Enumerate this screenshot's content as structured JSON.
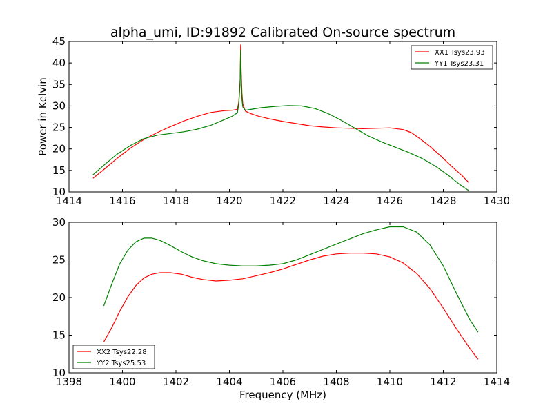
{
  "figure": {
    "title": "alpha_umi, ID:91892 Calibrated On-source spectrum",
    "ylabel": "Power in Kelvin",
    "xlabel": "Frequency (MHz)"
  },
  "chart_data": [
    {
      "type": "line",
      "xlabel": "",
      "ylabel": "Power in Kelvin",
      "xlim": [
        1414,
        1430
      ],
      "ylim": [
        10,
        45
      ],
      "xticks": [
        1414,
        1416,
        1418,
        1420,
        1422,
        1424,
        1426,
        1428,
        1430
      ],
      "yticks": [
        10,
        15,
        20,
        25,
        30,
        35,
        40,
        45
      ],
      "legend_position": "top-right",
      "series": [
        {
          "name": "XX1 Tsys23.93",
          "color": "#ff0000",
          "x": [
            1414.9,
            1415.3,
            1415.8,
            1416.3,
            1416.8,
            1417.3,
            1417.8,
            1418.3,
            1418.8,
            1419.3,
            1419.8,
            1420.1,
            1420.3,
            1420.35,
            1420.4,
            1420.42,
            1420.44,
            1420.47,
            1420.5,
            1420.6,
            1420.8,
            1421.1,
            1421.5,
            1422.0,
            1422.5,
            1423.0,
            1423.5,
            1424.0,
            1424.5,
            1425.0,
            1425.5,
            1426.0,
            1426.5,
            1426.8,
            1427.1,
            1427.5,
            1427.9,
            1428.3,
            1428.7,
            1428.95
          ],
          "y": [
            13.2,
            15.2,
            17.8,
            20.2,
            22.2,
            23.8,
            25.2,
            26.5,
            27.6,
            28.5,
            28.9,
            29.0,
            29.2,
            31.0,
            36.0,
            44.2,
            38.0,
            33.0,
            30.5,
            28.8,
            28.2,
            27.6,
            27.0,
            26.4,
            25.9,
            25.4,
            25.1,
            24.9,
            24.8,
            24.7,
            24.8,
            24.9,
            24.5,
            23.8,
            22.5,
            20.6,
            18.4,
            16.0,
            13.8,
            12.2
          ]
        },
        {
          "name": "YY1 Tsys23.31",
          "color": "#008000",
          "x": [
            1414.9,
            1415.3,
            1415.8,
            1416.3,
            1416.8,
            1417.3,
            1417.8,
            1418.3,
            1418.8,
            1419.3,
            1419.8,
            1420.1,
            1420.3,
            1420.35,
            1420.4,
            1420.42,
            1420.44,
            1420.47,
            1420.5,
            1420.6,
            1420.8,
            1421.2,
            1421.7,
            1422.2,
            1422.7,
            1423.2,
            1423.7,
            1424.2,
            1424.7,
            1425.2,
            1425.7,
            1426.2,
            1426.7,
            1427.2,
            1427.7,
            1428.2,
            1428.6,
            1428.95
          ],
          "y": [
            14.0,
            16.2,
            18.8,
            20.8,
            22.4,
            23.2,
            23.6,
            24.0,
            24.6,
            25.5,
            26.8,
            27.6,
            28.4,
            30.5,
            35.0,
            43.0,
            36.5,
            31.5,
            29.8,
            29.0,
            29.2,
            29.6,
            29.9,
            30.1,
            30.0,
            29.4,
            28.2,
            26.6,
            24.8,
            23.0,
            21.6,
            20.4,
            19.2,
            17.8,
            16.0,
            13.8,
            11.8,
            10.3
          ]
        }
      ]
    },
    {
      "type": "line",
      "xlabel": "Frequency (MHz)",
      "ylabel": "",
      "xlim": [
        1398,
        1414
      ],
      "ylim": [
        10,
        30
      ],
      "xticks": [
        1398,
        1400,
        1402,
        1404,
        1406,
        1408,
        1410,
        1412,
        1414
      ],
      "yticks": [
        10,
        15,
        20,
        25,
        30
      ],
      "legend_position": "bottom-left",
      "series": [
        {
          "name": "XX2 Tsys22.28",
          "color": "#ff0000",
          "x": [
            1399.3,
            1399.6,
            1399.9,
            1400.2,
            1400.5,
            1400.8,
            1401.1,
            1401.4,
            1401.8,
            1402.2,
            1402.6,
            1403.0,
            1403.5,
            1404.0,
            1404.5,
            1405.0,
            1405.5,
            1406.0,
            1406.5,
            1407.0,
            1407.5,
            1408.0,
            1408.5,
            1409.0,
            1409.5,
            1410.0,
            1410.5,
            1411.0,
            1411.5,
            1412.0,
            1412.5,
            1413.0,
            1413.3
          ],
          "y": [
            14.1,
            16.0,
            18.2,
            20.1,
            21.6,
            22.6,
            23.1,
            23.3,
            23.3,
            23.1,
            22.7,
            22.4,
            22.2,
            22.3,
            22.5,
            22.9,
            23.3,
            23.8,
            24.4,
            25.0,
            25.5,
            25.8,
            25.9,
            25.9,
            25.8,
            25.4,
            24.6,
            23.2,
            21.2,
            18.6,
            15.8,
            13.2,
            11.8
          ]
        },
        {
          "name": "YY2 Tsys25.53",
          "color": "#008000",
          "x": [
            1399.3,
            1399.6,
            1399.9,
            1400.2,
            1400.5,
            1400.8,
            1401.1,
            1401.4,
            1401.8,
            1402.2,
            1402.6,
            1403.0,
            1403.5,
            1404.0,
            1404.5,
            1405.0,
            1405.5,
            1406.0,
            1406.5,
            1407.0,
            1407.5,
            1408.0,
            1408.5,
            1409.0,
            1409.5,
            1410.0,
            1410.5,
            1411.0,
            1411.5,
            1412.0,
            1412.5,
            1413.0,
            1413.3
          ],
          "y": [
            18.9,
            21.8,
            24.5,
            26.3,
            27.4,
            27.9,
            27.9,
            27.6,
            26.9,
            26.1,
            25.4,
            24.9,
            24.5,
            24.3,
            24.2,
            24.2,
            24.3,
            24.5,
            25.0,
            25.7,
            26.4,
            27.1,
            27.8,
            28.5,
            29.0,
            29.4,
            29.4,
            28.7,
            27.0,
            24.2,
            20.5,
            17.0,
            15.4
          ]
        }
      ]
    }
  ]
}
